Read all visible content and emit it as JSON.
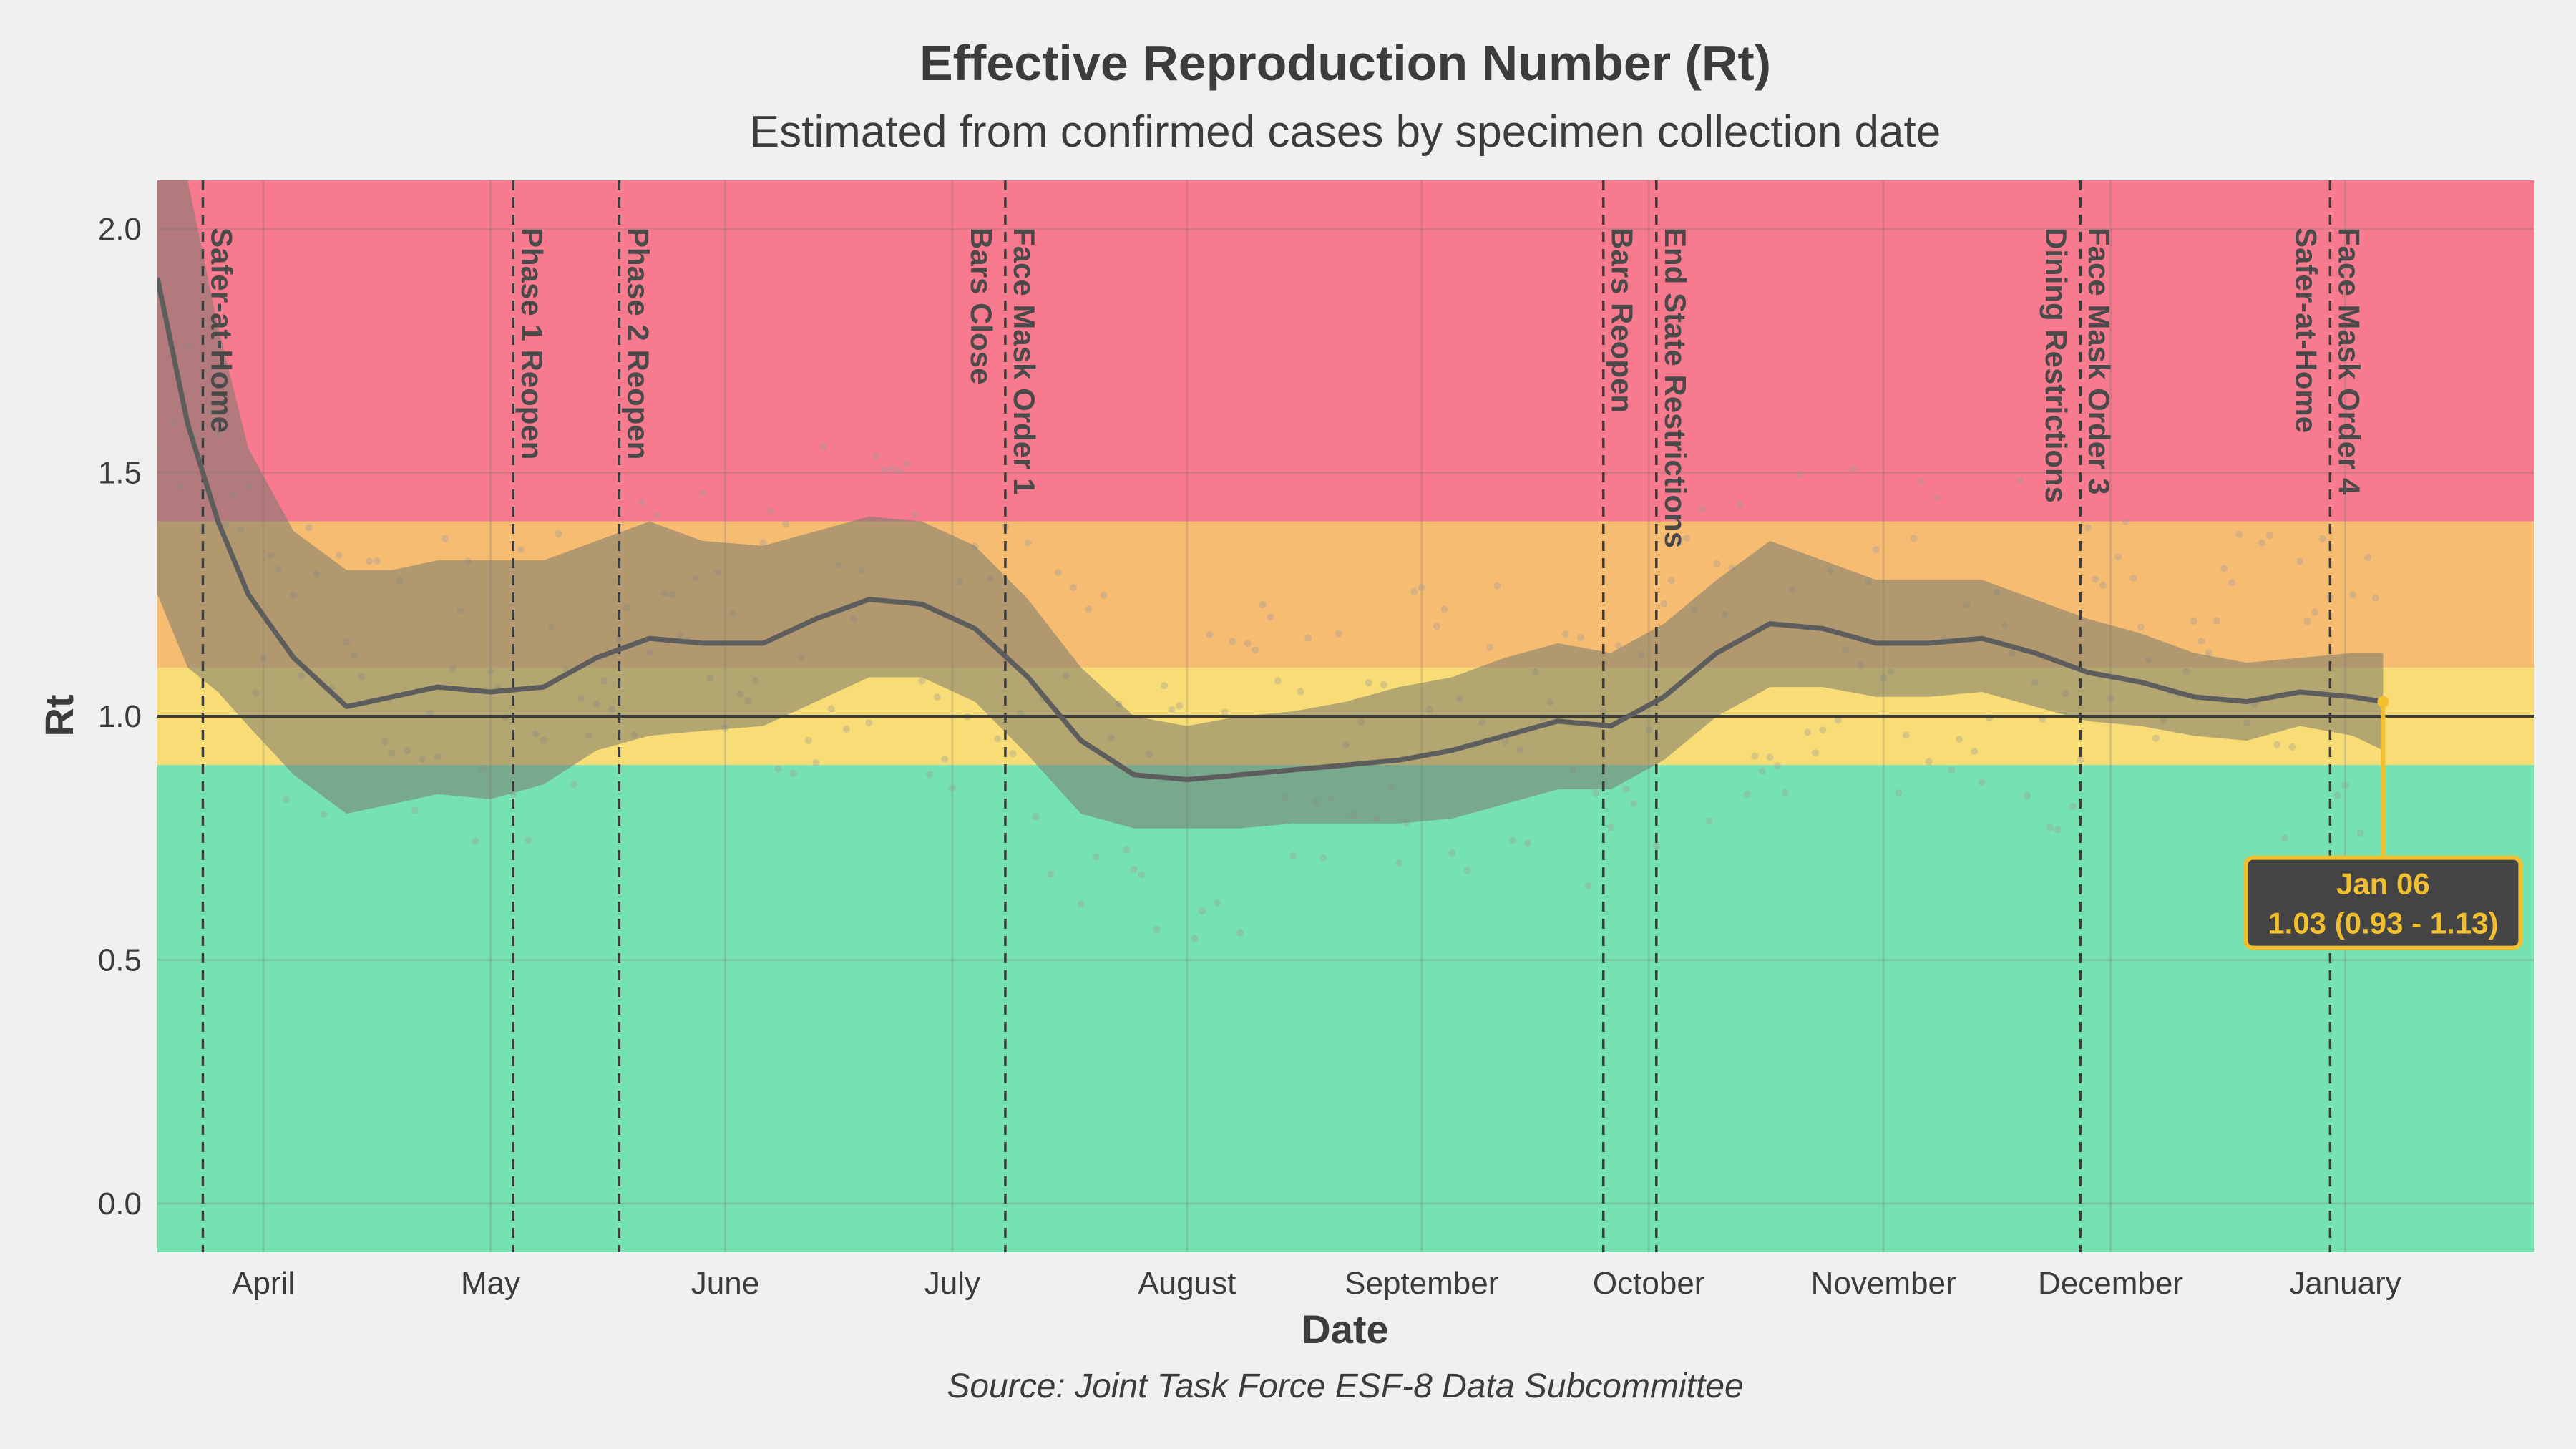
{
  "chart_data": {
    "type": "line",
    "title": "Effective Reproduction Number (Rt)",
    "subtitle": "Estimated from confirmed cases by specimen collection date",
    "xlabel": "Date",
    "ylabel": "Rt",
    "caption": "Source: Joint Task Force ESF-8 Data Subcommittee",
    "xlim": [
      "2020-03-18",
      "2021-01-26"
    ],
    "ylim": [
      -0.1,
      2.1
    ],
    "grid": true,
    "legend": "none",
    "x_ticks": [
      {
        "date": "2020-04-01",
        "label": "April"
      },
      {
        "date": "2020-05-01",
        "label": "May"
      },
      {
        "date": "2020-06-01",
        "label": "June"
      },
      {
        "date": "2020-07-01",
        "label": "July"
      },
      {
        "date": "2020-08-01",
        "label": "August"
      },
      {
        "date": "2020-09-01",
        "label": "September"
      },
      {
        "date": "2020-10-01",
        "label": "October"
      },
      {
        "date": "2020-11-01",
        "label": "November"
      },
      {
        "date": "2020-12-01",
        "label": "December"
      },
      {
        "date": "2021-01-01",
        "label": "January"
      }
    ],
    "y_ticks": [
      {
        "value": 0.0,
        "label": "0.0"
      },
      {
        "value": 0.5,
        "label": "0.5"
      },
      {
        "value": 1.0,
        "label": "1.0"
      },
      {
        "value": 1.5,
        "label": "1.5"
      },
      {
        "value": 2.0,
        "label": "2.0"
      }
    ],
    "zones": [
      {
        "from": -0.1,
        "to": 0.9,
        "color": "#77e2b1"
      },
      {
        "from": 0.9,
        "to": 1.1,
        "color": "#f8dc76"
      },
      {
        "from": 1.1,
        "to": 1.4,
        "color": "#f6bc72"
      },
      {
        "from": 1.4,
        "to": 2.1,
        "color": "#f77a8e"
      }
    ],
    "reference_line": 1.0,
    "colors": {
      "line": "#5d5d5d",
      "ribbon": "#7a7a6e",
      "event_line": "#3c3c3c",
      "callout_bg": "#444444",
      "callout_border": "#f2c02e",
      "callout_text": "#f2c02e",
      "points": "#9a9a9a"
    },
    "events": [
      {
        "date": "2020-03-24",
        "labels": [
          "Safer-at-Home"
        ]
      },
      {
        "date": "2020-05-04",
        "labels": [
          "Phase 1 Reopen"
        ]
      },
      {
        "date": "2020-05-18",
        "labels": [
          "Phase 2 Reopen"
        ]
      },
      {
        "date": "2020-07-08",
        "labels": [
          "Face Mask Order 1",
          "Bars Close"
        ]
      },
      {
        "date": "2020-09-25",
        "labels": [
          "Bars Reopen"
        ]
      },
      {
        "date": "2020-10-02",
        "labels": [
          "End State Restrictions"
        ]
      },
      {
        "date": "2020-11-27",
        "labels": [
          "Face Mask Order 3",
          "Dining Restrictions"
        ]
      },
      {
        "date": "2020-12-30",
        "labels": [
          "Face Mask Order 4",
          "Safer-at-Home"
        ]
      }
    ],
    "series": {
      "x": [
        "2020-03-18",
        "2020-03-22",
        "2020-03-26",
        "2020-03-30",
        "2020-04-05",
        "2020-04-12",
        "2020-04-18",
        "2020-04-24",
        "2020-05-01",
        "2020-05-08",
        "2020-05-15",
        "2020-05-22",
        "2020-05-29",
        "2020-06-06",
        "2020-06-13",
        "2020-06-20",
        "2020-06-27",
        "2020-07-04",
        "2020-07-11",
        "2020-07-18",
        "2020-07-25",
        "2020-08-01",
        "2020-08-08",
        "2020-08-15",
        "2020-08-22",
        "2020-08-29",
        "2020-09-05",
        "2020-09-12",
        "2020-09-19",
        "2020-09-26",
        "2020-10-03",
        "2020-10-10",
        "2020-10-17",
        "2020-10-24",
        "2020-10-31",
        "2020-11-07",
        "2020-11-14",
        "2020-11-21",
        "2020-11-28",
        "2020-12-05",
        "2020-12-12",
        "2020-12-19",
        "2020-12-26",
        "2021-01-02",
        "2021-01-06"
      ],
      "rt": [
        1.9,
        1.6,
        1.4,
        1.25,
        1.12,
        1.02,
        1.04,
        1.06,
        1.05,
        1.06,
        1.12,
        1.16,
        1.15,
        1.15,
        1.2,
        1.24,
        1.23,
        1.18,
        1.08,
        0.95,
        0.88,
        0.87,
        0.88,
        0.89,
        0.9,
        0.91,
        0.93,
        0.96,
        0.99,
        0.98,
        1.04,
        1.13,
        1.19,
        1.18,
        1.15,
        1.15,
        1.16,
        1.13,
        1.09,
        1.07,
        1.04,
        1.03,
        1.05,
        1.04,
        1.03
      ],
      "lower": [
        1.25,
        1.1,
        1.05,
        0.98,
        0.88,
        0.8,
        0.82,
        0.84,
        0.83,
        0.86,
        0.93,
        0.96,
        0.97,
        0.98,
        1.03,
        1.08,
        1.08,
        1.03,
        0.92,
        0.8,
        0.77,
        0.77,
        0.77,
        0.78,
        0.78,
        0.78,
        0.79,
        0.82,
        0.85,
        0.85,
        0.91,
        1.0,
        1.06,
        1.06,
        1.04,
        1.04,
        1.05,
        1.02,
        0.99,
        0.98,
        0.96,
        0.95,
        0.98,
        0.96,
        0.93
      ],
      "upper": [
        2.5,
        2.1,
        1.8,
        1.55,
        1.38,
        1.3,
        1.3,
        1.32,
        1.32,
        1.32,
        1.36,
        1.4,
        1.36,
        1.35,
        1.38,
        1.41,
        1.4,
        1.35,
        1.24,
        1.1,
        1.0,
        0.98,
        1.0,
        1.01,
        1.03,
        1.06,
        1.08,
        1.12,
        1.15,
        1.13,
        1.19,
        1.28,
        1.36,
        1.32,
        1.28,
        1.28,
        1.28,
        1.24,
        1.2,
        1.17,
        1.13,
        1.11,
        1.12,
        1.13,
        1.13
      ]
    },
    "callout": {
      "date": "2021-01-06",
      "value": 1.03,
      "date_label": "Jan 06",
      "value_label": "1.03 (0.93 - 1.13)"
    }
  }
}
